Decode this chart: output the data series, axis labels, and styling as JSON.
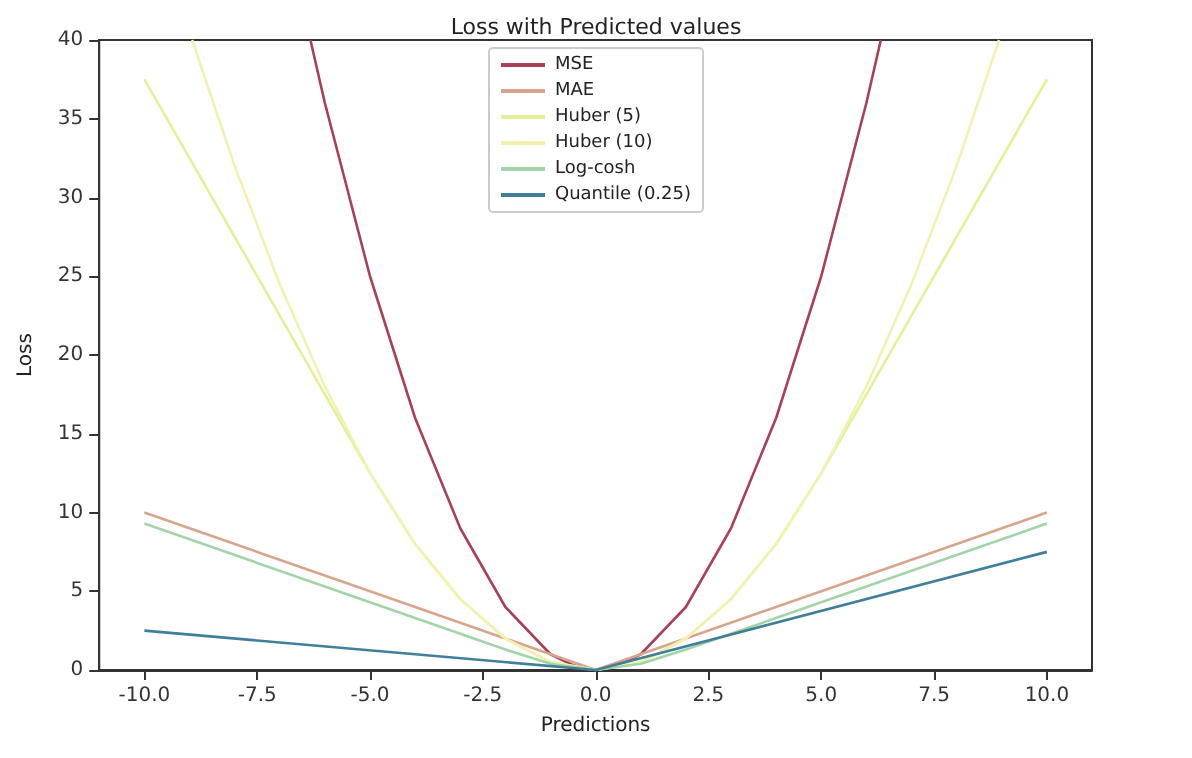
{
  "chart_data": {
    "type": "line",
    "title": "Loss with Predicted values",
    "xlabel": "Predictions",
    "ylabel": "Loss",
    "xlim": [
      -11,
      11
    ],
    "ylim": [
      0,
      40
    ],
    "xticks": [
      {
        "value": -10,
        "label": "-10.0"
      },
      {
        "value": -7.5,
        "label": "-7.5"
      },
      {
        "value": -5,
        "label": "-5.0"
      },
      {
        "value": -2.5,
        "label": "-2.5"
      },
      {
        "value": 0,
        "label": "0.0"
      },
      {
        "value": 2.5,
        "label": "2.5"
      },
      {
        "value": 5,
        "label": "5.0"
      },
      {
        "value": 7.5,
        "label": "7.5"
      },
      {
        "value": 10,
        "label": "10.0"
      }
    ],
    "yticks": [
      0,
      5,
      10,
      15,
      20,
      25,
      30,
      35,
      40
    ],
    "grid": false,
    "legend": "top",
    "marker": "none",
    "line_style": "solid",
    "series": [
      {
        "name": "MSE",
        "color": "#a8405a",
        "x": [
          -6.32,
          -6,
          -5,
          -4,
          -3,
          -2,
          -1,
          -0.5,
          0,
          0.5,
          1,
          2,
          3,
          4,
          5,
          6,
          6.32
        ],
        "values": [
          40,
          36,
          25,
          16,
          9,
          4,
          1,
          0.3,
          0,
          0.3,
          1,
          4,
          9,
          16,
          25,
          36,
          40
        ]
      },
      {
        "name": "MAE",
        "color": "#d9a48c",
        "x": [
          -10,
          -5,
          0,
          5,
          10
        ],
        "values": [
          10,
          5,
          0,
          5,
          10
        ]
      },
      {
        "name": "Huber (5)",
        "color": "#e6ee98",
        "x": [
          -10,
          -9,
          -8,
          -7,
          -6,
          -5,
          -4,
          -3,
          -2,
          -1,
          0,
          1,
          2,
          3,
          4,
          5,
          6,
          7,
          8,
          9,
          10
        ],
        "values": [
          37.5,
          32.5,
          27.5,
          22.5,
          17.5,
          12.5,
          8,
          4.5,
          2,
          0.5,
          0,
          0.5,
          2,
          4.5,
          8,
          12.5,
          17.5,
          22.5,
          27.5,
          32.5,
          37.5
        ]
      },
      {
        "name": "Huber (10)",
        "color": "#f2f2b0",
        "x": [
          -8.94,
          -8,
          -7,
          -6,
          -5,
          -4,
          -3,
          -2,
          -1,
          0,
          1,
          2,
          3,
          4,
          5,
          6,
          7,
          8,
          8.94
        ],
        "values": [
          40,
          32,
          24.5,
          18,
          12.5,
          8,
          4.5,
          2,
          0.5,
          0,
          0.5,
          2,
          4.5,
          8,
          12.5,
          18,
          24.5,
          32,
          40
        ]
      },
      {
        "name": "Log-cosh",
        "color": "#a3d4a8",
        "x": [
          -10,
          -5,
          -3,
          -2,
          -1,
          0,
          1,
          2,
          3,
          5,
          10
        ],
        "values": [
          9.3,
          4.3,
          2.3,
          1.3,
          0.4,
          0,
          0.4,
          1.3,
          2.3,
          4.3,
          9.3
        ]
      },
      {
        "name": "Quantile (0.25)",
        "color": "#3f7f99",
        "x": [
          -10,
          0,
          10
        ],
        "values": [
          2.5,
          0,
          7.5
        ]
      }
    ]
  }
}
